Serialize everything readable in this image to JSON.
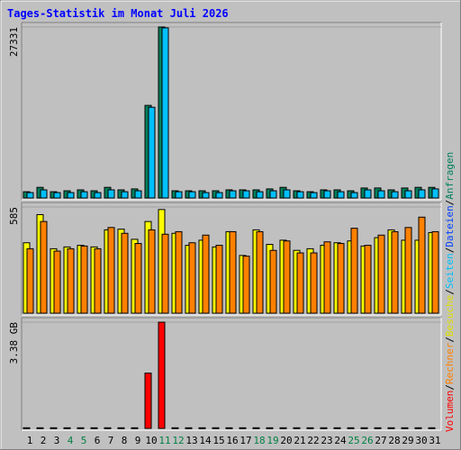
{
  "title": "Tages-Statistik im Monat Juli 2026",
  "legend": {
    "separator": "/",
    "items": [
      {
        "name": "Volumen",
        "color": "#ff0000"
      },
      {
        "name": "Rechner",
        "color": "#ff8000"
      },
      {
        "name": "Besuche",
        "color": "#e0e000"
      },
      {
        "name": "Seiten",
        "color": "#00c0ff"
      },
      {
        "name": "Dateien",
        "color": "#0040ff"
      },
      {
        "name": "Anfragen",
        "color": "#00805c"
      }
    ]
  },
  "chart_data": [
    {
      "type": "bar",
      "ylim": [
        0,
        27331
      ],
      "yticks": [
        27331
      ],
      "series": [
        {
          "color": "#00805c",
          "values": [
            1000,
            1700,
            1000,
            1150,
            1300,
            1150,
            1700,
            1300,
            1450,
            14800,
            27331,
            1150,
            1150,
            1150,
            1150,
            1300,
            1300,
            1300,
            1450,
            1700,
            1150,
            1000,
            1300,
            1300,
            1150,
            1600,
            1600,
            1300,
            1600,
            1700,
            1700
          ]
        },
        {
          "color": "#00c0ff",
          "values": [
            860,
            1300,
            860,
            860,
            1000,
            860,
            1300,
            1000,
            1150,
            14500,
            27200,
            1000,
            1000,
            860,
            860,
            1150,
            1150,
            1000,
            1150,
            1300,
            1000,
            860,
            1150,
            1000,
            860,
            1300,
            1150,
            1000,
            1150,
            1300,
            1450
          ]
        }
      ]
    },
    {
      "type": "bar",
      "ylim": [
        0,
        585
      ],
      "yticks": [
        585
      ],
      "series": [
        {
          "color": "#ffff00",
          "values": [
            388,
            543,
            355,
            365,
            374,
            365,
            459,
            463,
            407,
            505,
            571,
            440,
            374,
            402,
            365,
            449,
            318,
            459,
            379,
            402,
            346,
            355,
            374,
            388,
            398,
            370,
            416,
            459,
            402,
            402,
            444
          ]
        },
        {
          "color": "#ff8000",
          "values": [
            355,
            505,
            342,
            355,
            370,
            355,
            472,
            440,
            384,
            459,
            435,
            449,
            388,
            430,
            374,
            449,
            314,
            449,
            346,
            398,
            332,
            332,
            393,
            384,
            468,
            374,
            430,
            449,
            472,
            529,
            449
          ]
        }
      ]
    },
    {
      "type": "bar",
      "ylim": [
        0,
        3.38
      ],
      "yticks": [
        {
          "value": 3.38,
          "label": "3.38 GB"
        }
      ],
      "categories": [
        "1",
        "2",
        "3",
        "4",
        "5",
        "6",
        "7",
        "8",
        "9",
        "10",
        "11",
        "12",
        "13",
        "14",
        "15",
        "16",
        "17",
        "18",
        "19",
        "20",
        "21",
        "22",
        "23",
        "24",
        "25",
        "26",
        "27",
        "28",
        "29",
        "30",
        "31"
      ],
      "weekend": [
        3,
        4,
        10,
        11,
        17,
        18,
        24,
        25
      ],
      "weekend_color": "#008040",
      "series": [
        {
          "color": "#ff0000",
          "values": [
            0.02,
            0.02,
            0.02,
            0.02,
            0.02,
            0.02,
            0.02,
            0.02,
            0.02,
            1.76,
            3.38,
            0.02,
            0.02,
            0.02,
            0.02,
            0.02,
            0.02,
            0.02,
            0.02,
            0.02,
            0.02,
            0.02,
            0.02,
            0.02,
            0.02,
            0.02,
            0.02,
            0.02,
            0.02,
            0.02,
            0.02
          ]
        }
      ]
    }
  ]
}
